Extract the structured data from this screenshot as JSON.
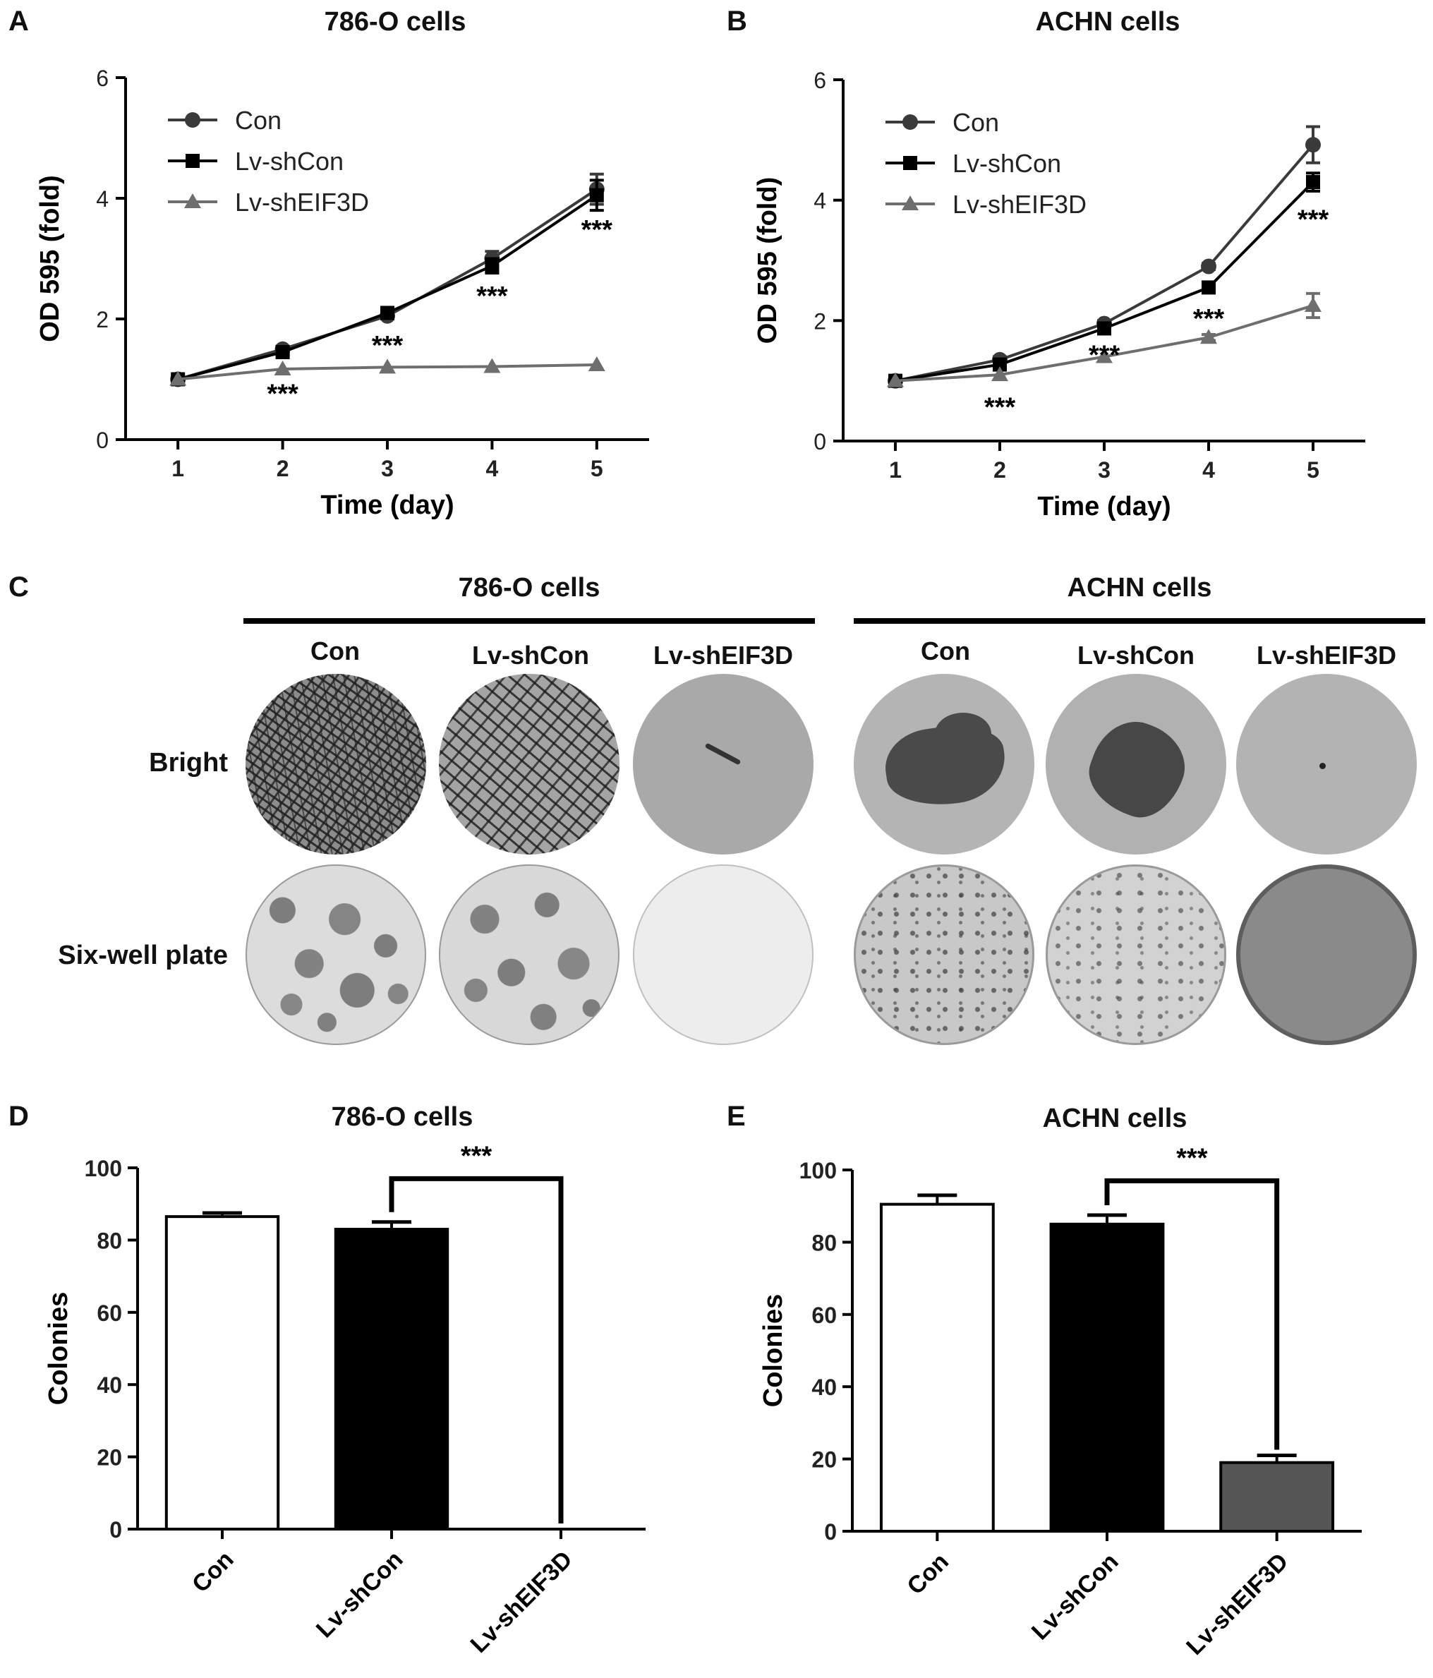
{
  "panels": {
    "A": {
      "letter": "A",
      "title": "786-O cells"
    },
    "B": {
      "letter": "B",
      "title": "ACHN cells"
    },
    "C": {
      "letter": "C"
    },
    "D": {
      "letter": "D",
      "title": "786-O cells"
    },
    "E": {
      "letter": "E",
      "title": "ACHN cells"
    }
  },
  "panel_c": {
    "groups": [
      "786-O cells",
      "ACHN cells"
    ],
    "columns": [
      "Con",
      "Lv-shCon",
      "Lv-shEIF3D"
    ],
    "rows": [
      "Bright",
      "Six-well plate"
    ]
  },
  "chart_data": [
    {
      "id": "A",
      "type": "line",
      "title": "786-O cells",
      "xlabel": "Time (day)",
      "ylabel": "OD 595 (fold)",
      "x": [
        1,
        2,
        3,
        4,
        5
      ],
      "xlim": [
        0.5,
        5.5
      ],
      "ylim": [
        0,
        6
      ],
      "yticks": [
        0,
        2,
        4,
        6
      ],
      "legend_position": "top-left",
      "series": [
        {
          "name": "Con",
          "marker": "circle",
          "color": "#3a3a3a",
          "values": [
            1.0,
            1.5,
            2.05,
            3.0,
            4.15
          ],
          "errors": [
            0.02,
            0.05,
            0.05,
            0.12,
            0.25
          ]
        },
        {
          "name": "Lv-shCon",
          "marker": "square",
          "color": "#000000",
          "values": [
            1.0,
            1.45,
            2.1,
            2.88,
            4.05
          ],
          "errors": [
            0.02,
            0.05,
            0.05,
            0.12,
            0.25
          ]
        },
        {
          "name": "Lv-shEIF3D",
          "marker": "triangle",
          "color": "#6e6e6e",
          "values": [
            1.0,
            1.17,
            1.2,
            1.21,
            1.24
          ],
          "errors": [
            0.02,
            0.03,
            0.03,
            0.03,
            0.03
          ]
        }
      ],
      "annotations": [
        {
          "x": 2,
          "y": 0.78,
          "text": "***"
        },
        {
          "x": 3,
          "y": 1.58,
          "text": "***"
        },
        {
          "x": 4,
          "y": 2.4,
          "text": "***"
        },
        {
          "x": 5,
          "y": 3.5,
          "text": "***"
        }
      ]
    },
    {
      "id": "B",
      "type": "line",
      "title": "ACHN cells",
      "xlabel": "Time (day)",
      "ylabel": "OD 595 (fold)",
      "x": [
        1,
        2,
        3,
        4,
        5
      ],
      "xlim": [
        0.5,
        5.5
      ],
      "ylim": [
        0,
        6
      ],
      "yticks": [
        0,
        2,
        4,
        6
      ],
      "legend_position": "top-left",
      "series": [
        {
          "name": "Con",
          "marker": "circle",
          "color": "#3a3a3a",
          "values": [
            1.0,
            1.35,
            1.95,
            2.9,
            4.92
          ],
          "errors": [
            0.02,
            0.05,
            0.05,
            0.05,
            0.3
          ]
        },
        {
          "name": "Lv-shCon",
          "marker": "square",
          "color": "#000000",
          "values": [
            1.0,
            1.27,
            1.87,
            2.55,
            4.3
          ],
          "errors": [
            0.02,
            0.05,
            0.05,
            0.05,
            0.15
          ]
        },
        {
          "name": "Lv-shEIF3D",
          "marker": "triangle",
          "color": "#6e6e6e",
          "values": [
            1.0,
            1.1,
            1.4,
            1.72,
            2.25
          ],
          "errors": [
            0.02,
            0.03,
            0.03,
            0.05,
            0.2
          ]
        }
      ],
      "annotations": [
        {
          "x": 2,
          "y": 0.58,
          "text": "***"
        },
        {
          "x": 3,
          "y": 1.45,
          "text": "***"
        },
        {
          "x": 4,
          "y": 2.05,
          "text": "***"
        },
        {
          "x": 5,
          "y": 3.7,
          "text": "***"
        }
      ]
    },
    {
      "id": "D",
      "type": "bar",
      "title": "786-O cells",
      "ylabel": "Colonies",
      "categories": [
        "Con",
        "Lv-shCon",
        "Lv-shEIF3D"
      ],
      "values": [
        86.5,
        83,
        0
      ],
      "errors": [
        1.0,
        2.0,
        0
      ],
      "colors": [
        "#ffffff",
        "#000000",
        "#555555"
      ],
      "ylim": [
        0,
        100
      ],
      "yticks": [
        0,
        20,
        40,
        60,
        80,
        100
      ],
      "significance": {
        "from": 1,
        "to": 2,
        "y": 97,
        "text": "***"
      }
    },
    {
      "id": "E",
      "type": "bar",
      "title": "ACHN cells",
      "ylabel": "Colonies",
      "categories": [
        "Con",
        "Lv-shCon",
        "Lv-shEIF3D"
      ],
      "values": [
        90.5,
        85,
        19
      ],
      "errors": [
        2.5,
        2.5,
        2.0
      ],
      "colors": [
        "#ffffff",
        "#000000",
        "#555555"
      ],
      "ylim": [
        0,
        100
      ],
      "yticks": [
        0,
        20,
        40,
        60,
        80,
        100
      ],
      "significance": {
        "from": 1,
        "to": 2,
        "y": 97,
        "text": "***"
      }
    }
  ]
}
